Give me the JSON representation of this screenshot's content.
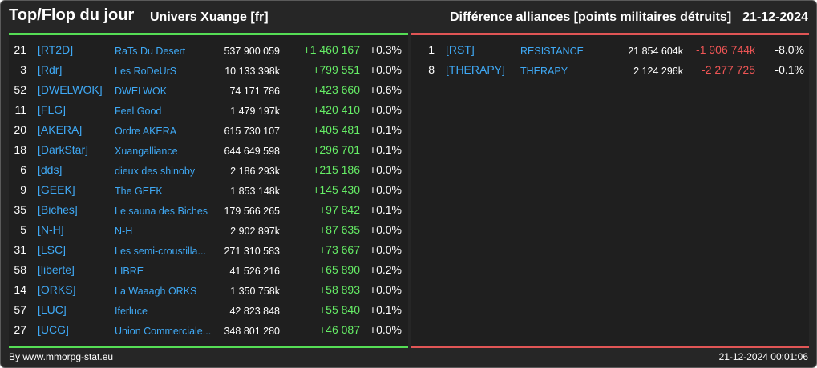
{
  "header": {
    "title": "Top/Flop du jour",
    "universe": "Univers Xuange [fr]",
    "metric": "Différence alliances [points militaires détruits]",
    "date": "21-12-2024"
  },
  "colors": {
    "positive": "#66ee66",
    "negative": "#ee5555",
    "link": "#3fa9f5",
    "top_border": "#55dd55",
    "flop_border": "#e05555"
  },
  "top": [
    {
      "rank": "21",
      "tag": "[RT2D]",
      "name": "RaTs Du Desert",
      "points": "537 900 059",
      "diff": "+1 460 167",
      "pct": "+0.3%"
    },
    {
      "rank": "3",
      "tag": "[Rdr]",
      "name": "Les RoDeUrS",
      "points": "10 133 398k",
      "diff": "+799 551",
      "pct": "+0.0%"
    },
    {
      "rank": "52",
      "tag": "[DWELWOK]",
      "name": "DWELWOK",
      "points": "74 171 786",
      "diff": "+423 660",
      "pct": "+0.6%"
    },
    {
      "rank": "11",
      "tag": "[FLG]",
      "name": "Feel Good",
      "points": "1 479 197k",
      "diff": "+420 410",
      "pct": "+0.0%"
    },
    {
      "rank": "20",
      "tag": "[AKERA]",
      "name": "Ordre AKERA",
      "points": "615 730 107",
      "diff": "+405 481",
      "pct": "+0.1%"
    },
    {
      "rank": "18",
      "tag": "[DarkStar]",
      "name": "Xuangalliance",
      "points": "644 649 598",
      "diff": "+296 701",
      "pct": "+0.1%"
    },
    {
      "rank": "6",
      "tag": "[dds]",
      "name": "dieux des shinoby",
      "points": "2 186 293k",
      "diff": "+215 186",
      "pct": "+0.0%"
    },
    {
      "rank": "9",
      "tag": "[GEEK]",
      "name": "The GEEK",
      "points": "1 853 148k",
      "diff": "+145 430",
      "pct": "+0.0%"
    },
    {
      "rank": "35",
      "tag": "[Biches]",
      "name": "Le sauna des Biches",
      "points": "179 566 265",
      "diff": "+97 842",
      "pct": "+0.1%"
    },
    {
      "rank": "5",
      "tag": "[N-H]",
      "name": "N-H",
      "points": "2 902 897k",
      "diff": "+87 635",
      "pct": "+0.0%"
    },
    {
      "rank": "31",
      "tag": "[LSC]",
      "name": "Les semi-croustilla...",
      "points": "271 310 583",
      "diff": "+73 667",
      "pct": "+0.0%"
    },
    {
      "rank": "58",
      "tag": "[liberte]",
      "name": "LIBRE",
      "points": "41 526 216",
      "diff": "+65 890",
      "pct": "+0.2%"
    },
    {
      "rank": "14",
      "tag": "[ORKS]",
      "name": "La Waaagh ORKS",
      "points": "1 350 758k",
      "diff": "+58 893",
      "pct": "+0.0%"
    },
    {
      "rank": "57",
      "tag": "[LUC]",
      "name": "Iferluce",
      "points": "42 823 848",
      "diff": "+55 840",
      "pct": "+0.1%"
    },
    {
      "rank": "27",
      "tag": "[UCG]",
      "name": "Union Commerciale...",
      "points": "348 801 280",
      "diff": "+46 087",
      "pct": "+0.0%"
    }
  ],
  "flop": [
    {
      "rank": "1",
      "tag": "[RST]",
      "name": "RESISTANCE",
      "points": "21 854 604k",
      "diff": "-1 906 744k",
      "pct": "-8.0%"
    },
    {
      "rank": "8",
      "tag": "[THERAPY]",
      "name": "THERAPY",
      "points": "2 124 296k",
      "diff": "-2 277 725",
      "pct": "-0.1%"
    }
  ],
  "footer": {
    "credit": "By www.mmorpg-stat.eu",
    "timestamp": "21-12-2024 00:01:06"
  }
}
